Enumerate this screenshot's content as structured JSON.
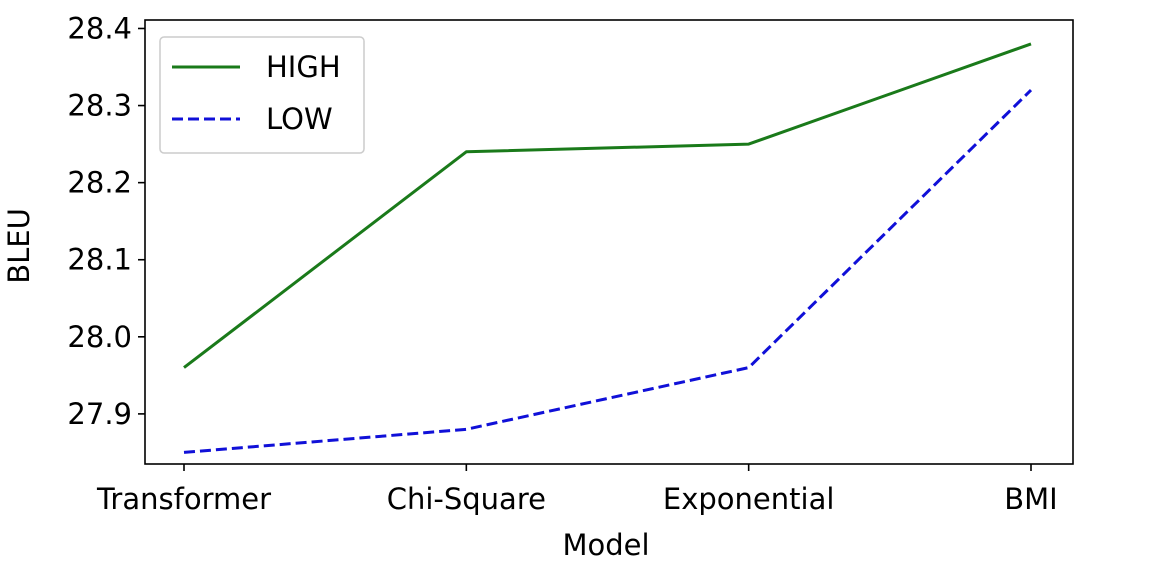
{
  "chart_data": {
    "type": "line",
    "title": "",
    "xlabel": "Model",
    "ylabel": "BLEU",
    "categories": [
      "Transformer",
      "Chi-Square",
      "Exponential",
      "BMI"
    ],
    "series": [
      {
        "name": "HIGH",
        "values": [
          27.96,
          28.24,
          28.25,
          28.38
        ],
        "color": "#1a7a1a",
        "style": "solid"
      },
      {
        "name": "LOW",
        "values": [
          27.85,
          27.88,
          27.96,
          28.32
        ],
        "color": "#1010d8",
        "style": "dashed"
      }
    ],
    "ylim": [
      27.835,
      28.411
    ],
    "yticks": [
      27.9,
      28.0,
      28.1,
      28.2,
      28.3,
      28.4
    ],
    "ytick_labels": [
      "27.9",
      "28.0",
      "28.1",
      "28.2",
      "28.3",
      "28.4"
    ],
    "grid": false,
    "legend_position": "top-left"
  }
}
